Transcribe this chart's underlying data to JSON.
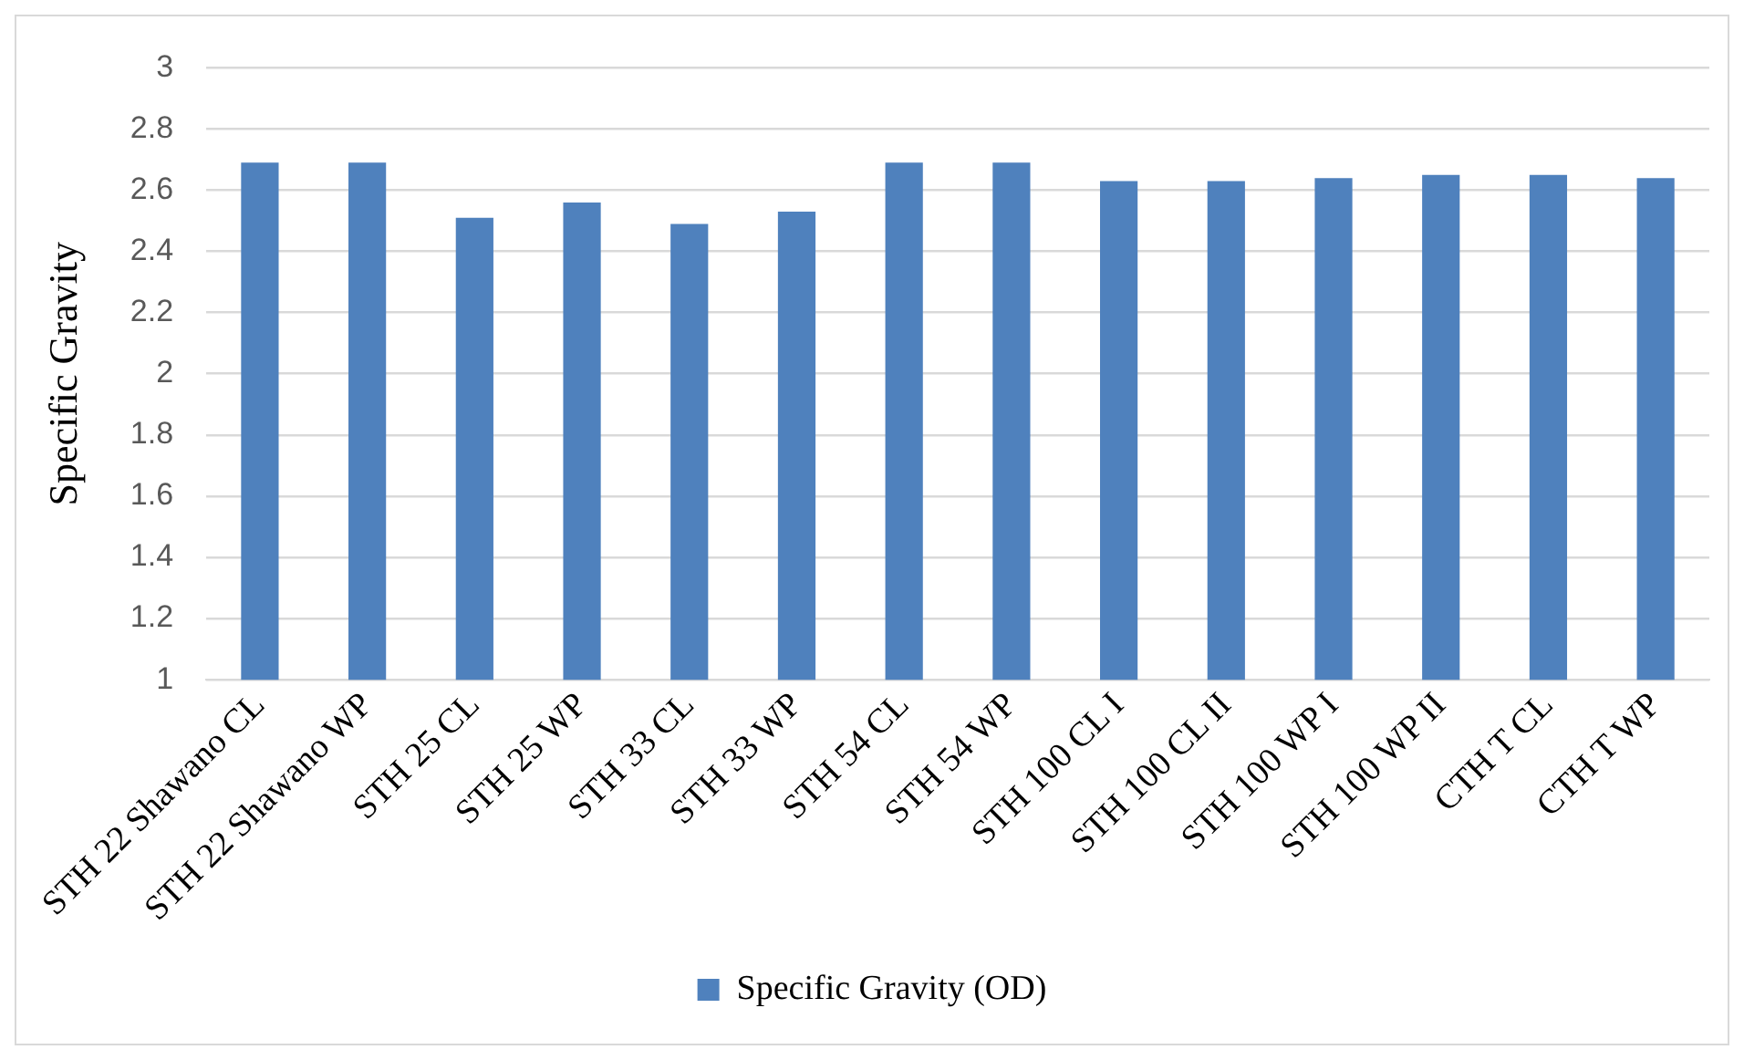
{
  "chart_data": {
    "type": "bar",
    "ylabel": "Specific Gravity",
    "categories": [
      "STH 22 Shawano CL",
      "STH 22 Shawano WP",
      "STH 25 CL",
      "STH 25 WP",
      "STH 33 CL",
      "STH 33 WP",
      "STH 54 CL",
      "STH 54 WP",
      "STH 100 CL I",
      "STH 100 CL II",
      "STH 100 WP I",
      "STH 100 WP II",
      "CTH T CL",
      "CTH T WP"
    ],
    "series": [
      {
        "name": "Specific Gravity (OD)",
        "color": "#4f81bd",
        "values": [
          2.69,
          2.69,
          2.51,
          2.56,
          2.49,
          2.53,
          2.69,
          2.69,
          2.63,
          2.63,
          2.64,
          2.65,
          2.65,
          2.64
        ]
      }
    ],
    "ylim": [
      1,
      3
    ],
    "yticks": [
      1,
      1.2,
      1.4,
      1.6,
      1.8,
      2,
      2.2,
      2.4,
      2.6,
      2.8,
      3
    ],
    "grid": "y",
    "legend": "bottom"
  }
}
